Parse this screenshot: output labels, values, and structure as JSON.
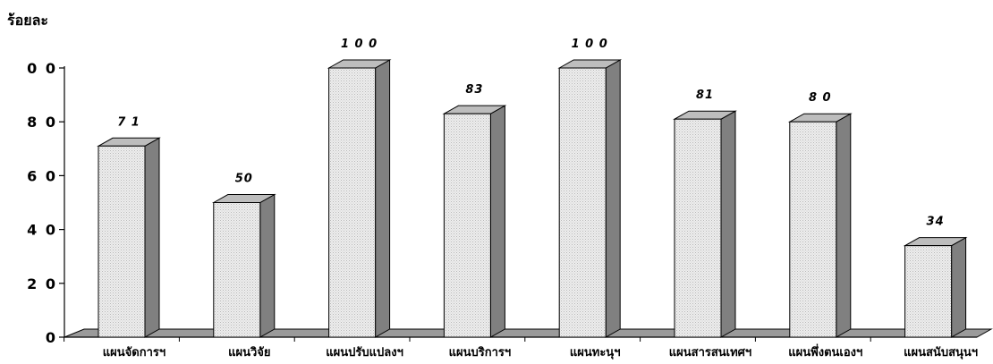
{
  "chart_data": {
    "type": "bar",
    "ylabel": "ร้อยละ",
    "categories": [
      "แผนจัดการฯ",
      "แผนวิจัย",
      "แผนปรับแปลงฯ",
      "แผนบริการฯ",
      "แผนทะนุฯ",
      "แผนสารสนเทศฯ",
      "แผนพึ่งตนเองฯ",
      "แผนสนับสนุนฯ"
    ],
    "values": [
      71,
      50,
      100,
      83,
      100,
      81,
      80,
      34
    ],
    "data_labels": [
      "7 1",
      "50",
      "1 0 0",
      "83",
      "1 0 0",
      "81",
      "8 0",
      "34"
    ],
    "ytick_labels": [
      "0",
      "2 0",
      "4 0",
      "6 0",
      "8 0",
      "0 0"
    ],
    "ytick_values": [
      0,
      20,
      40,
      60,
      80,
      100
    ],
    "ylim": [
      0,
      100
    ],
    "colors": {
      "bar_front": "#e6e6e6",
      "bar_side": "#808080",
      "bar_top": "#bdbdbd",
      "floor": "#9a9a9a"
    }
  }
}
